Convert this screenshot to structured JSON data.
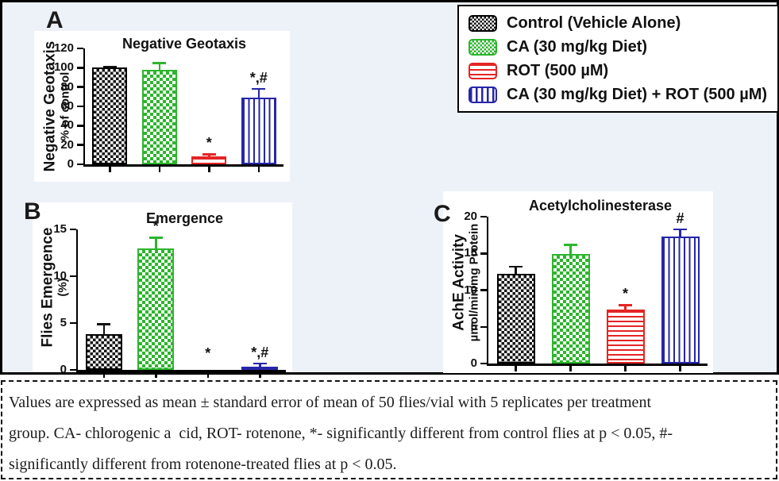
{
  "figure": {
    "panel_labels": {
      "a": "A",
      "b": "B",
      "c": "C"
    },
    "background_color": "#edf1f8"
  },
  "groups": [
    {
      "key": "control",
      "label": "Control (Vehicle Alone)",
      "pattern": "black-checker",
      "color": "#111111"
    },
    {
      "key": "ca",
      "label": "CA (30 mg/kg Diet)",
      "pattern": "green-checker",
      "color": "#2cb52c"
    },
    {
      "key": "rot",
      "label": "ROT (500 µM)",
      "pattern": "red-hstripe",
      "color": "#e42525"
    },
    {
      "key": "ca-rot",
      "label": "CA (30 mg/kg Diet) + ROT (500 µM)",
      "pattern": "blue-vstripe",
      "color": "#2626a8"
    }
  ],
  "chart_data": [
    {
      "type": "bar",
      "panel": "A",
      "title": "Negative Geotaxis",
      "ylabel_lines": [
        "Negative Geotaxis",
        "% of control"
      ],
      "ylim": [
        0,
        120
      ],
      "yticks": [
        0,
        20,
        40,
        60,
        80,
        100,
        120
      ],
      "categories": [
        "Control (Vehicle Alone)",
        "CA (30 mg/kg Diet)",
        "ROT (500 µM)",
        "CA (30 mg/kg Diet) + ROT (500 µM)"
      ],
      "values": [
        100,
        98,
        8,
        69
      ],
      "errors": [
        2,
        8,
        3.5,
        10
      ],
      "annotations": [
        "",
        "",
        "*",
        "*,#"
      ]
    },
    {
      "type": "bar",
      "panel": "B",
      "title": "Emergence",
      "ylabel_lines": [
        "Flies Emergence",
        "(%)"
      ],
      "ylim": [
        0,
        15
      ],
      "yticks": [
        0,
        5,
        10,
        15
      ],
      "categories": [
        "Control (Vehicle Alone)",
        "CA (30 mg/kg Diet)",
        "ROT (500 µM)",
        "CA (30 mg/kg Diet) + ROT (500 µM)"
      ],
      "values": [
        3.8,
        13,
        0,
        0.35
      ],
      "errors": [
        1.2,
        1.2,
        0,
        0.45
      ],
      "annotations": [
        "",
        "*",
        "*",
        "*,#"
      ]
    },
    {
      "type": "bar",
      "panel": "C",
      "title": "Acetylcholinesterase",
      "ylabel_lines": [
        "AchE Activity",
        "µmol/min/mg Protein"
      ],
      "ylim": [
        0,
        20
      ],
      "yticks": [
        0,
        5,
        10,
        15,
        20
      ],
      "categories": [
        "Control (Vehicle Alone)",
        "CA (30 mg/kg Diet)",
        "ROT (500 µM)",
        "CA (30 mg/kg Diet) + ROT (500 µM)"
      ],
      "values": [
        12.2,
        14.9,
        7.4,
        17.3
      ],
      "errors": [
        1.1,
        1.4,
        0.7,
        1.1
      ],
      "annotations": [
        "",
        "",
        "*",
        "#"
      ]
    }
  ],
  "caption": {
    "lines": [
      "Values are expressed as mean ± standard error of mean of 50 flies/vial with 5 replicates per treatment",
      "group. CA- chlorogenic a  cid, ROT- rotenone, *- significantly different from control flies at p < 0.05, #-",
      "significantly different from rotenone-treated flies at p < 0.05."
    ]
  }
}
